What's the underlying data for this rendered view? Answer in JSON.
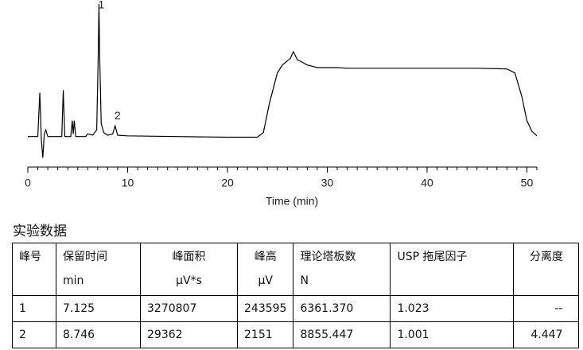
{
  "chart_data": {
    "type": "line",
    "xlabel": "Time (min)",
    "x": [
      0,
      1.0,
      1.2,
      1.35,
      1.5,
      1.65,
      1.8,
      2.0,
      3.4,
      3.55,
      3.7,
      4.3,
      4.45,
      4.55,
      4.65,
      4.8,
      5.8,
      6.0,
      6.5,
      6.9,
      7.05,
      7.125,
      7.2,
      7.35,
      7.6,
      8.0,
      8.5,
      8.746,
      9.0,
      10,
      15,
      20,
      23,
      23.6,
      24.2,
      25.0,
      25.5,
      26.3,
      26.6,
      27,
      28,
      29,
      31,
      32,
      40,
      45,
      48,
      48.8,
      49.5,
      50,
      50.5,
      51
    ],
    "values": [
      0,
      0,
      33,
      -2,
      -16,
      2,
      5,
      0,
      0,
      35,
      0,
      0,
      12,
      2,
      12,
      0,
      0,
      2,
      1,
      5,
      60,
      100,
      60,
      10,
      3,
      1,
      2,
      8,
      1,
      0.5,
      0,
      -0.5,
      -0.5,
      3,
      25,
      48,
      54,
      59,
      64,
      58,
      54,
      52,
      52,
      51.5,
      51.5,
      51.5,
      51,
      48,
      30,
      12,
      4,
      0.5
    ],
    "color": "#000000",
    "xlim": [
      0,
      51
    ],
    "xticks": [
      0,
      10,
      20,
      30,
      40,
      50
    ],
    "minor_tick_step": 1,
    "ylim": [
      -20,
      100
    ],
    "annotations": [
      {
        "text": "1",
        "x": 7.125
      },
      {
        "text": "2",
        "x": 8.746
      }
    ]
  },
  "table": {
    "title": "实验数据",
    "header": [
      [
        "峰号"
      ],
      [
        "保留时间",
        "min"
      ],
      [
        "峰面积",
        "μV*s"
      ],
      [
        "峰高",
        "μV"
      ],
      [
        "理论塔板数",
        "N"
      ],
      [
        "USP 拖尾因子"
      ],
      [
        "分离度"
      ]
    ],
    "rows": [
      [
        "1",
        "7.125",
        "3270807",
        "243595",
        "6361.370",
        "1.023",
        "--"
      ],
      [
        "2",
        "8.746",
        "29362",
        "2151",
        "8855.447",
        "1.001",
        "4.447"
      ]
    ]
  }
}
